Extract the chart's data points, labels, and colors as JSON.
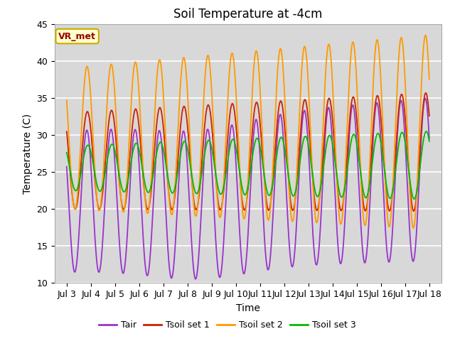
{
  "title": "Soil Temperature at -4cm",
  "xlabel": "Time",
  "ylabel": "Temperature (C)",
  "ylim": [
    10,
    45
  ],
  "xlim_days": [
    2.5,
    18.5
  ],
  "x_ticks_labels": [
    "Jul 3",
    "Jul 4",
    "Jul 5",
    "Jul 6",
    "Jul 7",
    "Jul 8",
    "Jul 9",
    "Jul 10",
    "Jul 11",
    "Jul 12",
    "Jul 13",
    "Jul 14",
    "Jul 15",
    "Jul 16",
    "Jul 17",
    "Jul 18"
  ],
  "x_ticks_pos": [
    3,
    4,
    5,
    6,
    7,
    8,
    9,
    10,
    11,
    12,
    13,
    14,
    15,
    16,
    17,
    18
  ],
  "y_ticks": [
    10,
    15,
    20,
    25,
    30,
    35,
    40,
    45
  ],
  "colors": {
    "Tair": "#9933cc",
    "Tsoil1": "#cc2200",
    "Tsoil2": "#ff9900",
    "Tsoil3": "#00bb00"
  },
  "legend_labels": [
    "Tair",
    "Tsoil set 1",
    "Tsoil set 2",
    "Tsoil set 3"
  ],
  "annotation_text": "VR_met",
  "annotation_bg": "#ffffcc",
  "annotation_border": "#ccaa00",
  "fig_bg": "#ffffff",
  "plot_bg": "#d8d8d8",
  "grid_color": "#ffffff",
  "title_fontsize": 12,
  "label_fontsize": 10,
  "tick_fontsize": 9,
  "line_width": 1.3
}
